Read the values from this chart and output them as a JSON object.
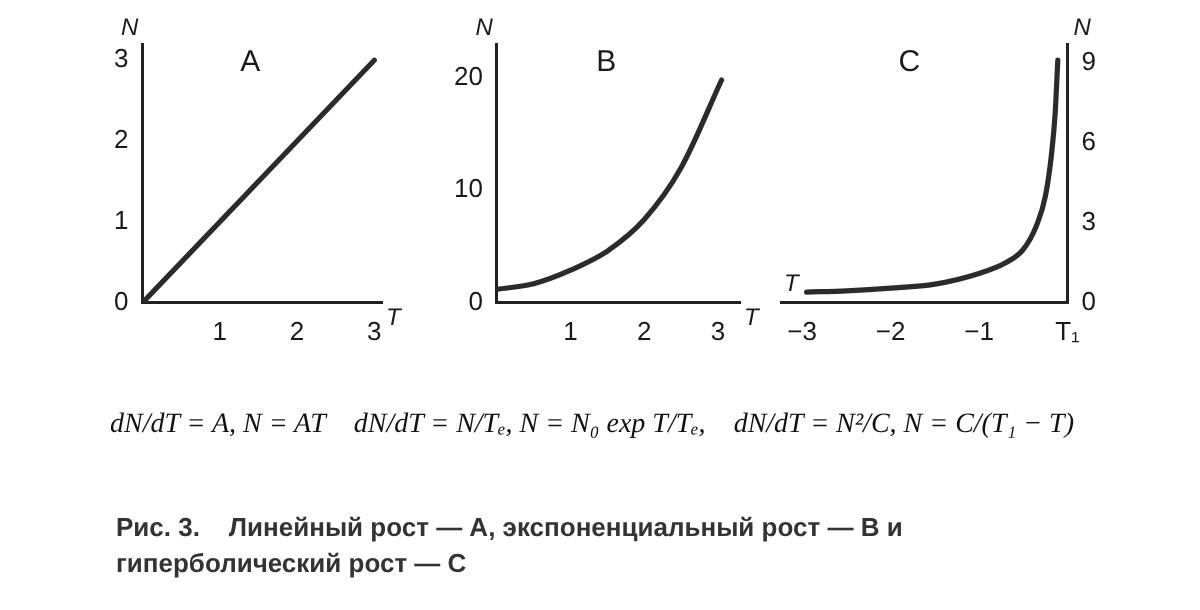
{
  "chart_data": [
    {
      "type": "line",
      "title": "A",
      "xlabel": "T",
      "ylabel": "N",
      "x": [
        0,
        3
      ],
      "series": [
        {
          "color": "#2b2b2b",
          "values": [
            0,
            3
          ]
        }
      ],
      "xlim": [
        0,
        3.1
      ],
      "xticks": [
        1,
        2,
        3
      ],
      "ylim": [
        0,
        3.2
      ],
      "yticks": [
        0,
        1,
        2,
        3
      ],
      "marker": "none",
      "annotations": [
        "dN/dT = A, N = AT"
      ]
    },
    {
      "type": "line",
      "title": "B",
      "xlabel": "T",
      "ylabel": "N",
      "x": [
        0,
        0.5,
        1,
        1.5,
        2,
        2.5,
        3.05
      ],
      "series": [
        {
          "color": "#2b2b2b",
          "values": [
            1.2,
            1.7,
            2.9,
            4.6,
            7.4,
            12,
            19.8
          ]
        }
      ],
      "xlim": [
        0,
        3.3
      ],
      "xticks": [
        1,
        2,
        3
      ],
      "ylim": [
        0,
        23
      ],
      "yticks": [
        0,
        10,
        20
      ],
      "marker": "none",
      "annotations": [
        "dN/dT = N/Tₑ, N = N₀ exp T/Tₑ,"
      ]
    },
    {
      "type": "line",
      "title": "C",
      "xlabel": "T",
      "ylabel": "N",
      "x": [
        -2.95,
        -2.5,
        -2,
        -1.5,
        -1,
        -0.7,
        -0.5,
        -0.35,
        -0.25,
        -0.18,
        -0.14,
        -0.11
      ],
      "series": [
        {
          "color": "#2b2b2b",
          "values": [
            0.4,
            0.45,
            0.55,
            0.7,
            1.1,
            1.5,
            2,
            2.9,
            4,
            5.6,
            7.1,
            9.1
          ]
        }
      ],
      "xlim": [
        -3.25,
        0
      ],
      "xticks": [
        -3,
        -2,
        -1,
        {
          "value": 0,
          "label": "T₁"
        }
      ],
      "ylim": [
        0,
        9.7
      ],
      "yticks": [
        0,
        3,
        6,
        9
      ],
      "marker": "none",
      "annotations": [
        "dN/dT = N²/C, N = C/(T₁ − T)",
        "Рис. 3.    Линейный рост — A, экспоненциальный рост — B и гиперболический рост — C"
      ]
    }
  ]
}
